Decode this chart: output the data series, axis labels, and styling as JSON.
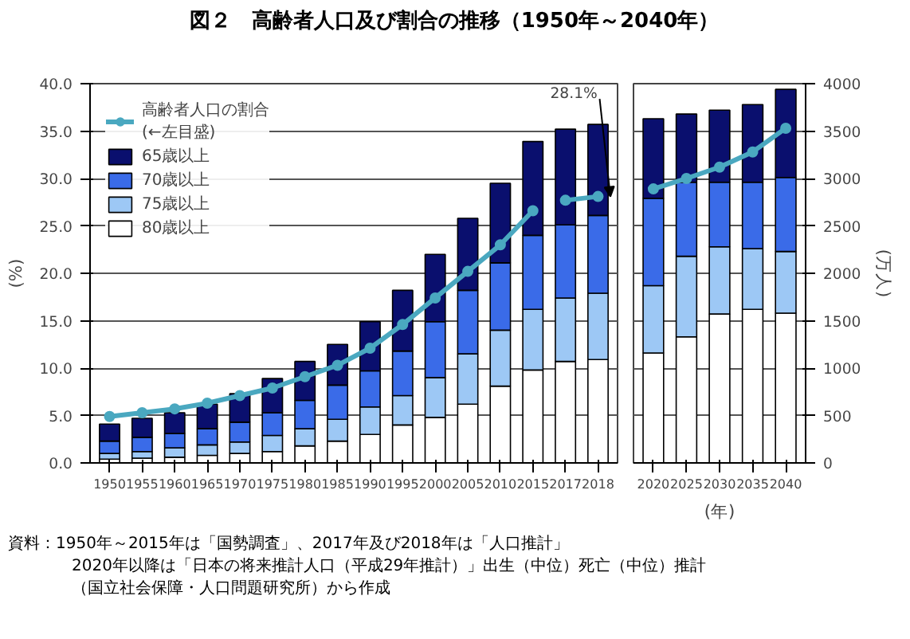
{
  "chart_data": [
    {
      "type": "bar",
      "stacked": true,
      "title": "図２　高齢者人口及び割合の推移（1950年～2040年）",
      "categories": [
        "1950",
        "1955",
        "1960",
        "1965",
        "1970",
        "1975",
        "1980",
        "1985",
        "1990",
        "1995",
        "2000",
        "2005",
        "2010",
        "2015",
        "2017",
        "2018"
      ],
      "ylabel": "(%)",
      "ylim": [
        0,
        40
      ],
      "yticks": [
        {
          "value": 0,
          "label": "0.0"
        },
        {
          "value": 5,
          "label": "5.0"
        },
        {
          "value": 10,
          "label": "10.0"
        },
        {
          "value": 15,
          "label": "15.0"
        },
        {
          "value": 20,
          "label": "20.0"
        },
        {
          "value": 25,
          "label": "25.0"
        },
        {
          "value": 30,
          "label": "30.0"
        },
        {
          "value": 35,
          "label": "35.0"
        },
        {
          "value": 40,
          "label": "40.0"
        }
      ],
      "y2lim": [
        0,
        4000
      ],
      "grid": "y",
      "legend": "top left",
      "series": [
        {
          "name": "80歳以上",
          "color": "#ffffff",
          "axis": "y2",
          "values": [
            40,
            50,
            60,
            80,
            100,
            120,
            180,
            230,
            300,
            400,
            480,
            620,
            810,
            980,
            1070,
            1090
          ]
        },
        {
          "name": "75歳以上",
          "color": "#9dc8f5",
          "axis": "y2",
          "values": [
            60,
            70,
            100,
            110,
            120,
            170,
            180,
            230,
            290,
            310,
            420,
            530,
            590,
            640,
            670,
            700
          ]
        },
        {
          "name": "70歳以上",
          "color": "#3a6be8",
          "axis": "y2",
          "values": [
            130,
            150,
            150,
            170,
            210,
            240,
            300,
            360,
            380,
            470,
            590,
            670,
            710,
            780,
            770,
            820
          ]
        },
        {
          "name": "65歳以上",
          "color": "#0a0f6e",
          "axis": "y2",
          "values": [
            180,
            200,
            220,
            260,
            300,
            360,
            410,
            430,
            520,
            640,
            710,
            760,
            840,
            990,
            1010,
            960
          ]
        },
        {
          "name": "高齢者人口の割合\n(←左目盛)",
          "type": "line",
          "marker": "circle",
          "color": "#4aa8c0",
          "values": [
            4.9,
            5.3,
            5.7,
            6.3,
            7.1,
            7.9,
            9.1,
            10.3,
            12.1,
            14.6,
            17.4,
            20.2,
            23.0,
            26.6,
            null,
            null
          ]
        },
        {
          "type": "line",
          "marker": "circle",
          "color": "#4aa8c0",
          "values": [
            null,
            null,
            null,
            null,
            null,
            null,
            null,
            null,
            null,
            null,
            null,
            null,
            null,
            null,
            27.7,
            28.1
          ]
        }
      ],
      "annotations": [
        {
          "text": "28.1%",
          "x": "2018",
          "y": 28.1
        },
        "資料：1950年～2015年は「国勢調査」、2017年及び2018年は「人口推計」",
        "2020年以降は「日本の将来推計人口（平成29年推計）」出生（中位）死亡（中位）推計",
        "（国立社会保障・人口問題研究所）から作成"
      ]
    },
    {
      "type": "bar",
      "stacked": true,
      "categories": [
        "2020",
        "2025",
        "2030",
        "2035",
        "2040"
      ],
      "xlabel": "(年)",
      "y2label": "(万人)",
      "ylim": [
        0,
        40
      ],
      "y2lim": [
        0,
        4000
      ],
      "y2ticks": [
        0,
        500,
        1000,
        1500,
        2000,
        2500,
        3000,
        3500,
        4000
      ],
      "grid": "y",
      "series": [
        {
          "color": "#ffffff",
          "axis": "y2",
          "values": [
            1160,
            1330,
            1570,
            1620,
            1580
          ]
        },
        {
          "color": "#9dc8f5",
          "axis": "y2",
          "values": [
            710,
            850,
            710,
            640,
            650
          ]
        },
        {
          "color": "#3a6be8",
          "axis": "y2",
          "values": [
            920,
            780,
            680,
            700,
            780
          ]
        },
        {
          "color": "#0a0f6e",
          "axis": "y2",
          "values": [
            840,
            720,
            760,
            820,
            930
          ]
        },
        {
          "type": "line",
          "marker": "circle",
          "color": "#4aa8c0",
          "values": [
            28.9,
            30.0,
            31.2,
            32.8,
            35.3
          ]
        }
      ]
    }
  ]
}
